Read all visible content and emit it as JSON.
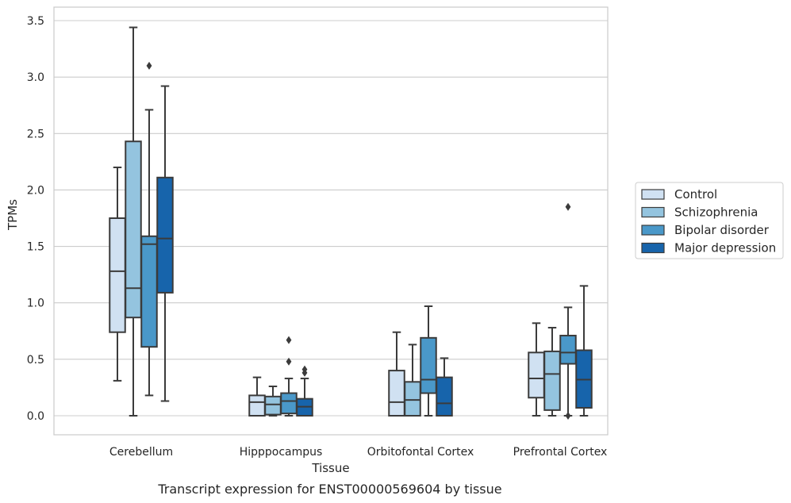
{
  "chart_data": {
    "type": "box",
    "xlabel": "Tissue",
    "ylabel": "TPMs",
    "caption": "Transcript expression for ENST00000569604 by tissue",
    "ylim": [
      -0.17,
      3.6
    ],
    "yticks": [
      "0.0",
      "0.5",
      "1.0",
      "1.5",
      "2.0",
      "2.5",
      "3.0",
      "3.5"
    ],
    "grid": "horizontal",
    "legend_position": "right",
    "categories": [
      "Cerebellum",
      "Hipppocampus",
      "Orbitofontal Cortex",
      "Prefrontal Cortex"
    ],
    "series": [
      {
        "name": "Control",
        "color": "#d0e1f2",
        "boxes": [
          {
            "whislo": 0.31,
            "q1": 0.74,
            "med": 1.28,
            "q3": 1.75,
            "whishi": 2.2,
            "fliers": []
          },
          {
            "whislo": 0.0,
            "q1": 0.0,
            "med": 0.12,
            "q3": 0.18,
            "whishi": 0.34,
            "fliers": []
          },
          {
            "whislo": 0.0,
            "q1": 0.0,
            "med": 0.12,
            "q3": 0.4,
            "whishi": 0.74,
            "fliers": []
          },
          {
            "whislo": 0.0,
            "q1": 0.16,
            "med": 0.33,
            "q3": 0.56,
            "whishi": 0.82,
            "fliers": []
          }
        ]
      },
      {
        "name": "Schizophrenia",
        "color": "#94c4df",
        "boxes": [
          {
            "whislo": 0.0,
            "q1": 0.87,
            "med": 1.13,
            "q3": 2.43,
            "whishi": 3.44,
            "fliers": []
          },
          {
            "whislo": 0.0,
            "q1": 0.01,
            "med": 0.1,
            "q3": 0.17,
            "whishi": 0.26,
            "fliers": []
          },
          {
            "whislo": 0.0,
            "q1": 0.0,
            "med": 0.14,
            "q3": 0.3,
            "whishi": 0.63,
            "fliers": []
          },
          {
            "whislo": 0.0,
            "q1": 0.05,
            "med": 0.37,
            "q3": 0.57,
            "whishi": 0.78,
            "fliers": []
          }
        ]
      },
      {
        "name": "Bipolar disorder",
        "color": "#4a98c9",
        "boxes": [
          {
            "whislo": 0.18,
            "q1": 0.61,
            "med": 1.52,
            "q3": 1.59,
            "whishi": 2.71,
            "fliers": [
              3.1
            ]
          },
          {
            "whislo": 0.0,
            "q1": 0.02,
            "med": 0.13,
            "q3": 0.2,
            "whishi": 0.33,
            "fliers": [
              0.48,
              0.67
            ]
          },
          {
            "whislo": 0.0,
            "q1": 0.2,
            "med": 0.32,
            "q3": 0.69,
            "whishi": 0.97,
            "fliers": []
          },
          {
            "whislo": 0.0,
            "q1": 0.46,
            "med": 0.56,
            "q3": 0.71,
            "whishi": 0.96,
            "fliers": [
              0.0,
              1.85
            ]
          }
        ]
      },
      {
        "name": "Major depression",
        "color": "#1764ab",
        "boxes": [
          {
            "whislo": 0.13,
            "q1": 1.09,
            "med": 1.57,
            "q3": 2.11,
            "whishi": 2.92,
            "fliers": []
          },
          {
            "whislo": 0.0,
            "q1": 0.0,
            "med": 0.08,
            "q3": 0.15,
            "whishi": 0.33,
            "fliers": [
              0.38,
              0.41
            ]
          },
          {
            "whislo": 0.0,
            "q1": 0.0,
            "med": 0.11,
            "q3": 0.34,
            "whishi": 0.51,
            "fliers": []
          },
          {
            "whislo": 0.0,
            "q1": 0.07,
            "med": 0.32,
            "q3": 0.58,
            "whishi": 1.15,
            "fliers": []
          }
        ]
      }
    ]
  }
}
